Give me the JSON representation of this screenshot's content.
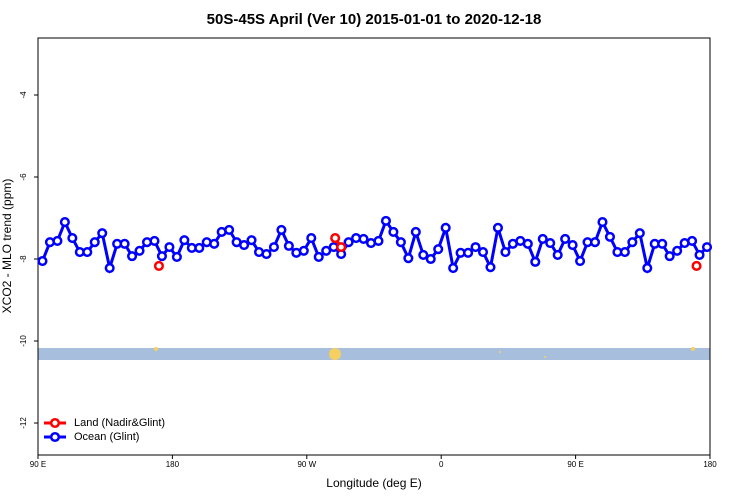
{
  "chart_data": {
    "type": "line",
    "title": "50S-45S April (Ver 10)   2015-01-01 to 2020-12-18",
    "xlabel": "Longitude (deg E)",
    "ylabel": "XCO2 - MLO trend (ppm)",
    "xlim": [
      90,
      540
    ],
    "xticks": [
      {
        "value": 90,
        "label": "90 E"
      },
      {
        "value": 180,
        "label": "180"
      },
      {
        "value": 270,
        "label": "90 W"
      },
      {
        "value": 360,
        "label": "0"
      },
      {
        "value": 450,
        "label": "90 E"
      },
      {
        "value": 540,
        "label": "180"
      }
    ],
    "ylim": [
      -12.78,
      -2.61
    ],
    "yticks": [
      -4,
      -6,
      -8,
      -10,
      -12
    ],
    "legend": "bottom-left",
    "series": [
      {
        "name": "Land (Nadir&Glint)",
        "color": "#ff0000",
        "x": [
          171,
          289,
          293,
          531
        ],
        "values": [
          -8.17,
          -7.49,
          -7.71,
          -8.17
        ]
      },
      {
        "name": "Ocean (Glint)",
        "color": "#0000ff",
        "x": [
          93,
          98,
          103,
          108,
          113,
          118,
          123,
          128,
          133,
          138,
          143,
          148,
          153,
          158,
          163,
          168,
          173,
          178,
          183,
          188,
          193,
          198,
          203,
          208,
          213,
          218,
          223,
          228,
          233,
          238,
          243,
          248,
          253,
          258,
          263,
          268,
          273,
          278,
          283,
          288,
          293,
          298,
          303,
          308,
          313,
          318,
          323,
          328,
          333,
          338,
          343,
          348,
          353,
          358,
          363,
          368,
          373,
          378,
          383,
          388,
          393,
          398,
          403,
          408,
          413,
          418,
          423,
          428,
          433,
          438,
          443,
          448,
          453,
          458,
          463,
          468,
          473,
          478,
          483,
          488,
          493,
          498,
          503,
          508,
          513,
          518,
          523,
          528,
          533,
          538
        ],
        "values": [
          -8.05,
          -7.59,
          -7.56,
          -7.1,
          -7.49,
          -7.83,
          -7.83,
          -7.59,
          -7.37,
          -8.22,
          -7.63,
          -7.63,
          -7.93,
          -7.8,
          -7.59,
          -7.56,
          -7.93,
          -7.71,
          -7.95,
          -7.54,
          -7.73,
          -7.73,
          -7.59,
          -7.63,
          -7.34,
          -7.29,
          -7.59,
          -7.66,
          -7.54,
          -7.83,
          -7.88,
          -7.71,
          -7.29,
          -7.68,
          -7.85,
          -7.8,
          -7.49,
          -7.95,
          -7.8,
          -7.71,
          -7.88,
          -7.59,
          -7.49,
          -7.51,
          -7.61,
          -7.56,
          -7.07,
          -7.34,
          -7.59,
          -7.98,
          -7.34,
          -7.9,
          -8.0,
          -7.76,
          -7.24,
          -8.22,
          -7.85,
          -7.85,
          -7.71,
          -7.83,
          -8.2,
          -7.24,
          -7.83,
          -7.63,
          -7.56,
          -7.63,
          -8.07,
          -7.51,
          -7.61,
          -7.9,
          -7.51,
          -7.66,
          -8.05,
          -7.59,
          -7.59,
          -7.1,
          -7.46,
          -7.83,
          -7.83,
          -7.59,
          -7.37,
          -8.22,
          -7.63,
          -7.63,
          -7.93,
          -7.8,
          -7.61,
          -7.56,
          -7.9,
          -7.71
        ]
      }
    ]
  }
}
